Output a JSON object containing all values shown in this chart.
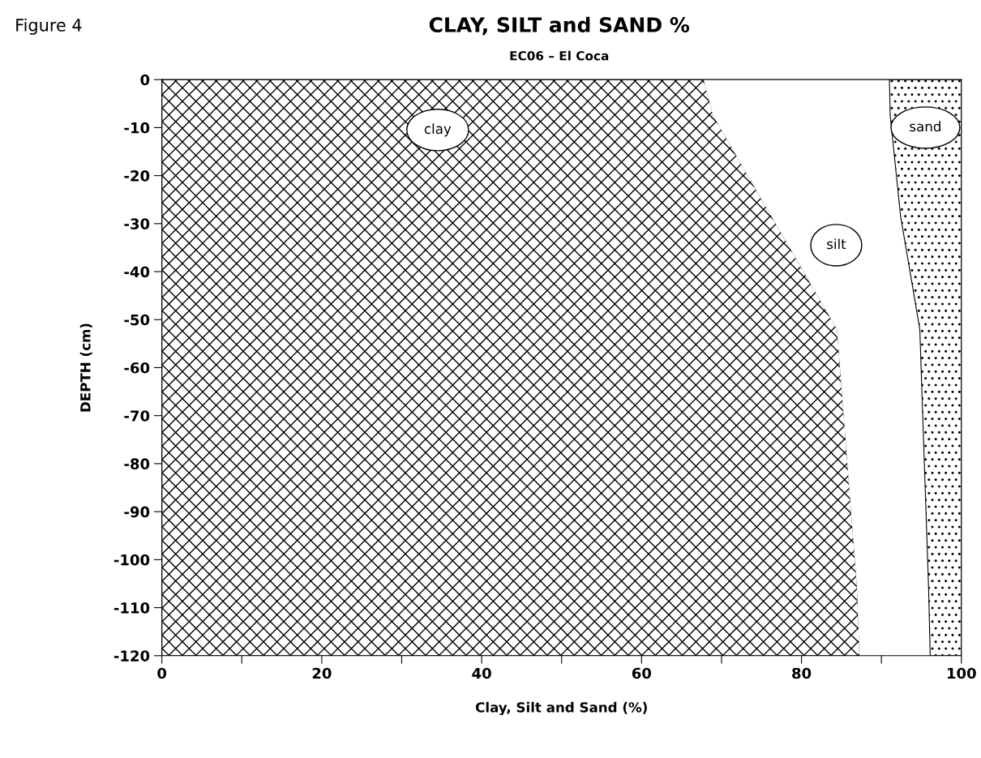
{
  "chart_data": {
    "type": "area",
    "title": "CLAY, SILT and SAND %",
    "subtitle": "EC06 – El Coca",
    "xlabel": "Clay, Silt and Sand (%)",
    "ylabel": "DEPTH (cm)",
    "annotations": [
      "Figure 4"
    ],
    "orientation": "horizontal",
    "stacked": true,
    "x": [
      0,
      -7.5,
      -28.5,
      -52,
      -106,
      -120
    ],
    "series": [
      {
        "name": "clay",
        "color": "#000000",
        "values": [
          67.8,
          69,
          76.3,
          84.5,
          87,
          87.3
        ]
      },
      {
        "name": "silt",
        "color": "#ffffff",
        "values": [
          23.2,
          22.1,
          16.1,
          10.3,
          8.9,
          8.8
        ]
      },
      {
        "name": "sand",
        "color": "#000000",
        "values": [
          9,
          8.9,
          7.6,
          5.2,
          4.1,
          3.9
        ]
      }
    ],
    "xlim": [
      0,
      100
    ],
    "ylim": [
      -120,
      0
    ],
    "xticks": [
      0,
      {
        "value": 10,
        "label": null
      },
      20,
      {
        "value": 30,
        "label": null
      },
      40,
      {
        "value": 50,
        "label": null
      },
      60,
      {
        "value": 70,
        "label": null
      },
      80,
      {
        "value": 90,
        "label": null
      },
      100
    ],
    "yticks": [
      0,
      -10,
      -20,
      -30,
      -40,
      -50,
      -60,
      -70,
      -80,
      -90,
      -100,
      -110,
      -120
    ],
    "grid": false,
    "legend": false
  }
}
